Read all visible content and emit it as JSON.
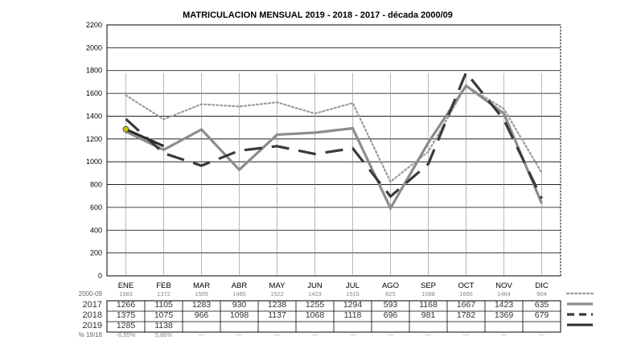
{
  "chart_data": {
    "type": "line",
    "title": "MATRICULACION MENSUAL  2019 - 2018 - 2017 - década 2000/09",
    "xlabel": "",
    "ylabel": "",
    "ylim": [
      0,
      2200
    ],
    "ytick_step": 200,
    "yticks": [
      "0",
      "200",
      "400",
      "600",
      "800",
      "1000",
      "1200",
      "1400",
      "1600",
      "1800",
      "2000",
      "2200"
    ],
    "grid": true,
    "categories": [
      "ENE",
      "FEB",
      "MAR",
      "ABR",
      "MAY",
      "JUN",
      "JUL",
      "AGO",
      "SEP",
      "OCT",
      "NOV",
      "DIC"
    ],
    "series": [
      {
        "name": "2000-09",
        "style": "dotted",
        "color": "#999999",
        "values": [
          1583,
          1372,
          1505,
          1485,
          1522,
          1423,
          1515,
          825,
          1088,
          1666,
          1464,
          904
        ],
        "labels": [
          "1583",
          "1372",
          "1505",
          "1485",
          "1522",
          "1423",
          "1515",
          "825",
          "1088",
          "1666",
          "1464",
          "904"
        ]
      },
      {
        "name": "2017",
        "style": "solid",
        "color": "#8c8c8c",
        "values": [
          1266,
          1105,
          1283,
          930,
          1238,
          1255,
          1294,
          593,
          1168,
          1667,
          1423,
          635
        ],
        "labels": [
          "1266",
          "1105",
          "1283",
          "930",
          "1238",
          "1255",
          "1294",
          "593",
          "1168",
          "1667",
          "1423",
          "635"
        ]
      },
      {
        "name": "2018",
        "style": "dashed",
        "color": "#3a3a3a",
        "values": [
          1375,
          1075,
          966,
          1098,
          1137,
          1068,
          1118,
          696,
          981,
          1782,
          1369,
          679
        ],
        "labels": [
          "1375",
          "1075",
          "966",
          "1098",
          "1137",
          "1068",
          "1118",
          "696",
          "981",
          "1782",
          "1369",
          "679"
        ]
      },
      {
        "name": "2019",
        "style": "solid-dark",
        "color": "#2a2a2a",
        "values": [
          1285,
          1138,
          null,
          null,
          null,
          null,
          null,
          null,
          null,
          null,
          null,
          null
        ],
        "labels": [
          "1285",
          "1138",
          "",
          "",
          "",
          "",
          "",
          "",
          "",
          "",
          "",
          ""
        ]
      },
      {
        "name": "% 19/18",
        "style": "none",
        "labels": [
          "-6,55%",
          "5,86%",
          "---",
          "---",
          "---",
          "---",
          "---",
          "---",
          "---",
          "---",
          "---",
          "---"
        ]
      }
    ],
    "marker": {
      "series": "2019",
      "index": 0,
      "color": "#c8c800"
    }
  }
}
